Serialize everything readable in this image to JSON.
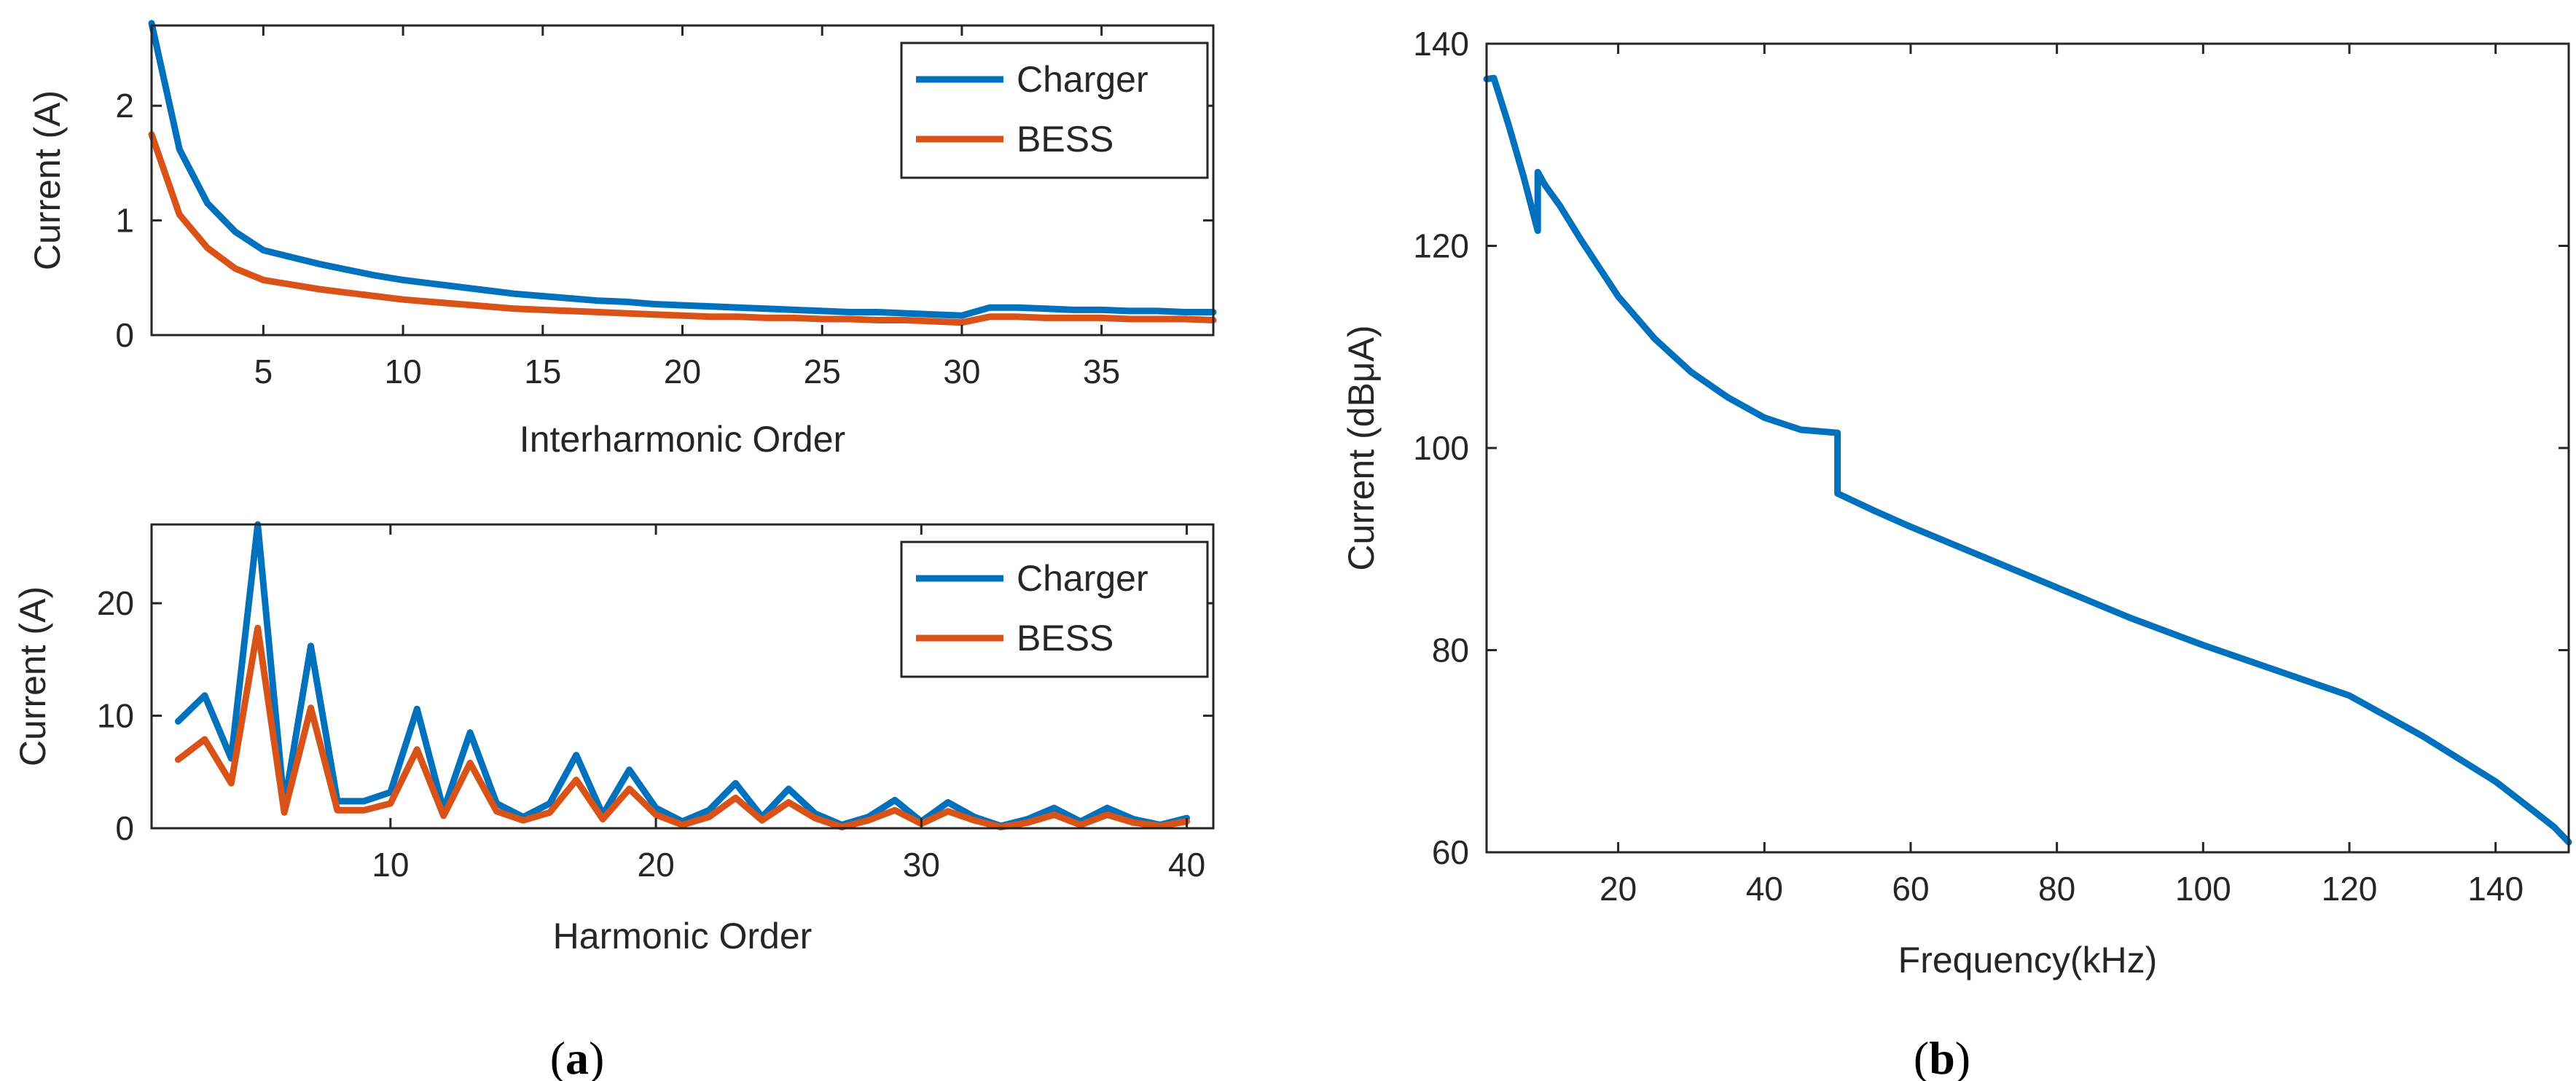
{
  "chart_data": [
    {
      "type": "line",
      "panel": "a",
      "xlabel": "Interharmonic Order",
      "ylabel": "Current (A)",
      "xlim": [
        1,
        39
      ],
      "ylim": [
        0,
        2.7
      ],
      "xticks": [
        5,
        10,
        15,
        20,
        25,
        30,
        35
      ],
      "yticks": [
        0,
        1,
        2
      ],
      "grid": false,
      "legend": "top-right",
      "series": [
        {
          "name": "Charger",
          "color": "#0072BD",
          "x": [
            1,
            2,
            3,
            4,
            5,
            6,
            7,
            8,
            9,
            10,
            11,
            12,
            13,
            14,
            15,
            16,
            17,
            18,
            19,
            20,
            21,
            22,
            23,
            24,
            25,
            26,
            27,
            28,
            29,
            30,
            31,
            32,
            33,
            34,
            35,
            36,
            37,
            38,
            39
          ],
          "values": [
            2.72,
            1.62,
            1.15,
            0.9,
            0.74,
            0.68,
            0.62,
            0.57,
            0.52,
            0.48,
            0.45,
            0.42,
            0.39,
            0.36,
            0.34,
            0.32,
            0.3,
            0.29,
            0.27,
            0.26,
            0.25,
            0.24,
            0.23,
            0.22,
            0.21,
            0.2,
            0.2,
            0.19,
            0.18,
            0.17,
            0.24,
            0.24,
            0.23,
            0.22,
            0.22,
            0.21,
            0.21,
            0.2,
            0.2
          ]
        },
        {
          "name": "BESS",
          "color": "#D95319",
          "x": [
            1,
            2,
            3,
            4,
            5,
            6,
            7,
            8,
            9,
            10,
            11,
            12,
            13,
            14,
            15,
            16,
            17,
            18,
            19,
            20,
            21,
            22,
            23,
            24,
            25,
            26,
            27,
            28,
            29,
            30,
            31,
            32,
            33,
            34,
            35,
            36,
            37,
            38,
            39
          ],
          "values": [
            1.75,
            1.05,
            0.76,
            0.58,
            0.48,
            0.44,
            0.4,
            0.37,
            0.34,
            0.31,
            0.29,
            0.27,
            0.25,
            0.23,
            0.22,
            0.21,
            0.2,
            0.19,
            0.18,
            0.17,
            0.16,
            0.16,
            0.15,
            0.15,
            0.14,
            0.14,
            0.13,
            0.13,
            0.12,
            0.11,
            0.16,
            0.16,
            0.15,
            0.15,
            0.15,
            0.14,
            0.14,
            0.14,
            0.13
          ]
        }
      ]
    },
    {
      "type": "line",
      "panel": "a",
      "xlabel": "Harmonic Order",
      "ylabel": "Current (A)",
      "xlim": [
        1,
        41
      ],
      "ylim": [
        0,
        27
      ],
      "xticks": [
        10,
        20,
        30,
        40
      ],
      "yticks": [
        0,
        10,
        20
      ],
      "grid": false,
      "legend": "top-right",
      "series": [
        {
          "name": "Charger",
          "color": "#0072BD",
          "x": [
            2,
            3,
            4,
            5,
            6,
            7,
            8,
            9,
            10,
            11,
            12,
            13,
            14,
            15,
            16,
            17,
            18,
            19,
            20,
            21,
            22,
            23,
            24,
            25,
            26,
            27,
            28,
            29,
            30,
            31,
            32,
            33,
            34,
            35,
            36,
            37,
            38,
            39,
            40
          ],
          "values": [
            9.5,
            11.8,
            6.2,
            27.0,
            2.0,
            16.2,
            2.4,
            2.4,
            3.2,
            10.6,
            1.6,
            8.5,
            2.2,
            1.0,
            2.2,
            6.5,
            1.2,
            5.2,
            1.8,
            0.6,
            1.6,
            4.0,
            1.0,
            3.5,
            1.3,
            0.3,
            1.0,
            2.5,
            0.6,
            2.3,
            1.0,
            0.2,
            0.8,
            1.8,
            0.6,
            1.8,
            0.8,
            0.3,
            0.9
          ]
        },
        {
          "name": "BESS",
          "color": "#D95319",
          "x": [
            2,
            3,
            4,
            5,
            6,
            7,
            8,
            9,
            10,
            11,
            12,
            13,
            14,
            15,
            16,
            17,
            18,
            19,
            20,
            21,
            22,
            23,
            24,
            25,
            26,
            27,
            28,
            29,
            30,
            31,
            32,
            33,
            34,
            35,
            36,
            37,
            38,
            39,
            40
          ],
          "values": [
            6.1,
            7.9,
            4.0,
            17.8,
            1.4,
            10.7,
            1.6,
            1.6,
            2.2,
            7.0,
            1.1,
            5.8,
            1.5,
            0.7,
            1.4,
            4.3,
            0.8,
            3.5,
            1.2,
            0.3,
            1.0,
            2.7,
            0.7,
            2.3,
            0.9,
            0.1,
            0.7,
            1.6,
            0.4,
            1.5,
            0.7,
            0.1,
            0.5,
            1.2,
            0.3,
            1.2,
            0.5,
            0.2,
            0.6
          ]
        }
      ]
    },
    {
      "type": "line",
      "panel": "b",
      "xlabel": "Frequency(kHz)",
      "ylabel": "Current (dBμA)",
      "xlim": [
        2,
        150
      ],
      "ylim": [
        60,
        140
      ],
      "xticks": [
        20,
        40,
        60,
        80,
        100,
        120,
        140
      ],
      "yticks": [
        60,
        80,
        100,
        120,
        140
      ],
      "grid": false,
      "series": [
        {
          "color": "#0072BD",
          "x": [
            2,
            3,
            5,
            7,
            9,
            9,
            10,
            12,
            15,
            20,
            25,
            30,
            35,
            40,
            45,
            50,
            50,
            55,
            60,
            70,
            80,
            90,
            100,
            110,
            120,
            130,
            140,
            145,
            148,
            150
          ],
          "values": [
            136.5,
            136.6,
            132.0,
            127.0,
            121.5,
            127.3,
            126.0,
            124.0,
            120.5,
            115.0,
            110.8,
            107.5,
            105.0,
            103.0,
            101.8,
            101.5,
            95.5,
            93.8,
            92.2,
            89.2,
            86.2,
            83.2,
            80.5,
            78.0,
            75.5,
            71.5,
            67.0,
            64.2,
            62.5,
            61.0
          ]
        }
      ]
    }
  ],
  "labels": {
    "panel_a": "(a)",
    "panel_a_letter": "a",
    "panel_b": "(b)",
    "panel_b_letter": "b"
  }
}
